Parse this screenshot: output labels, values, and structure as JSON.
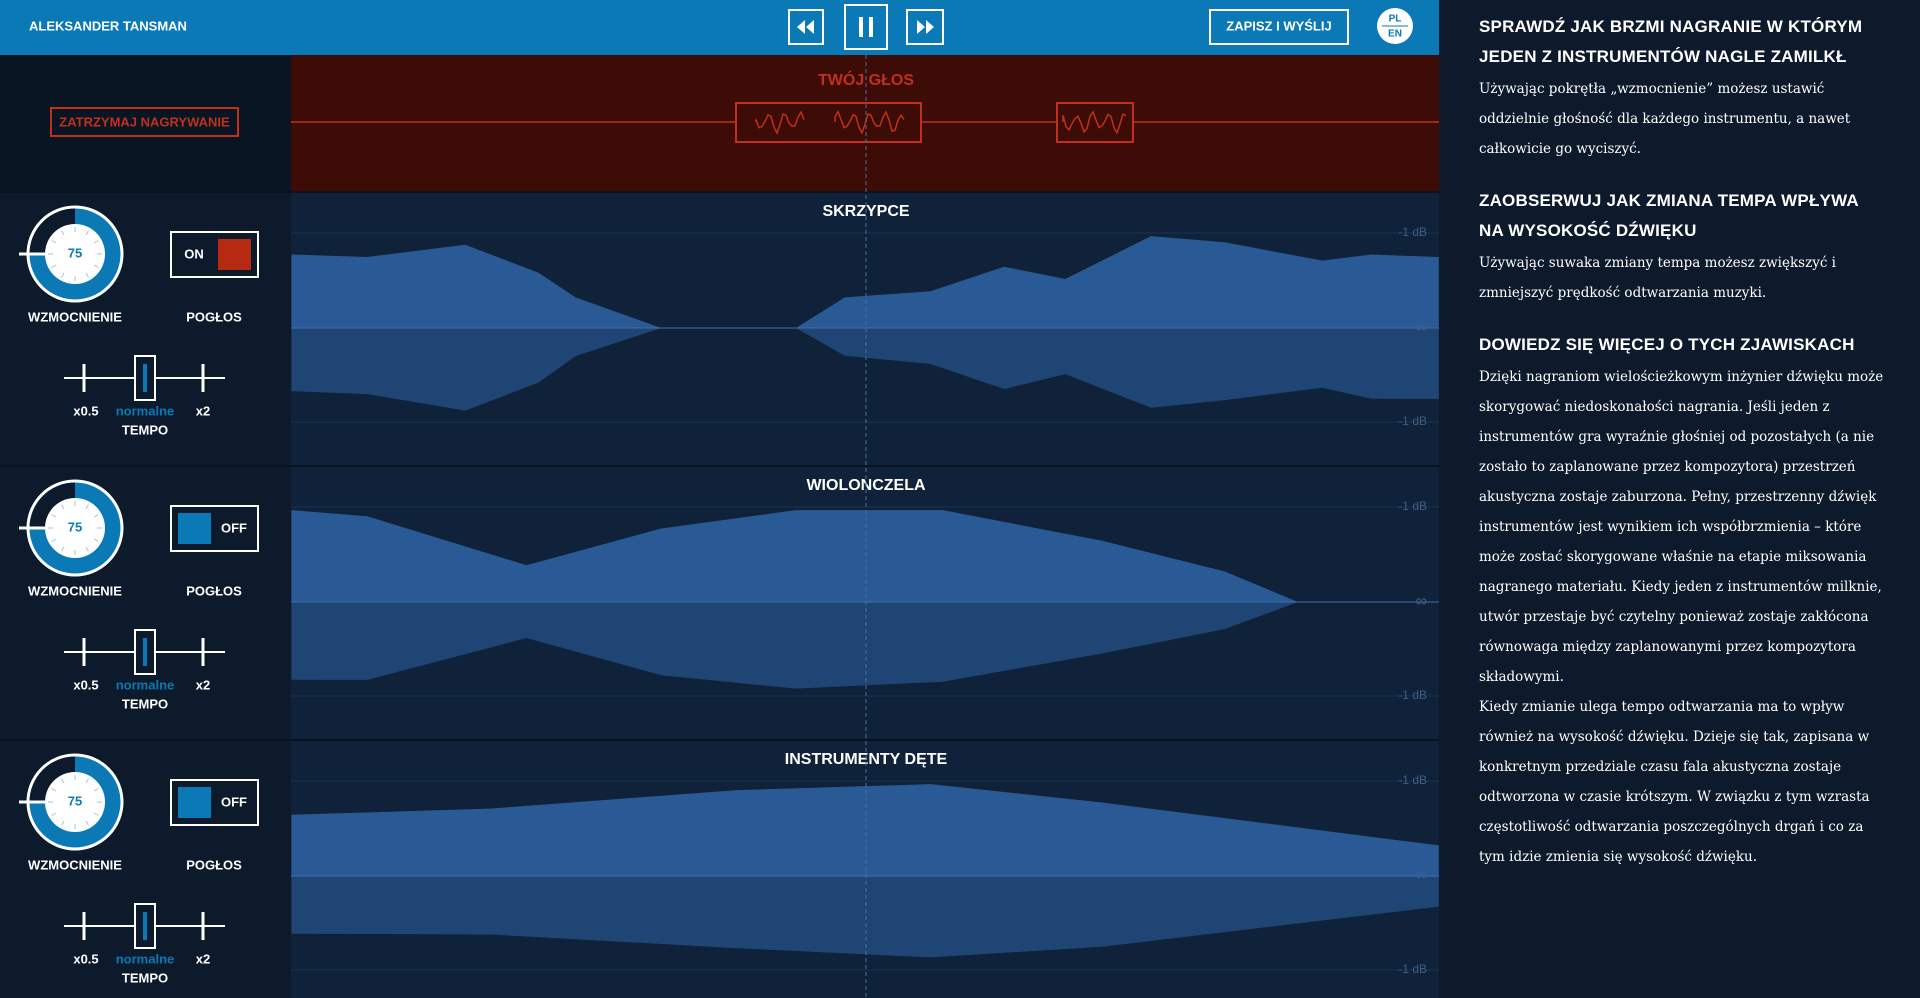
{
  "header": {
    "artist": "ALEKSANDER TANSMAN",
    "save_button": "ZAPISZ I WYŚLIJ",
    "lang": [
      "PL",
      "EN"
    ]
  },
  "recording": {
    "stop_button": "ZATRZYMAJ NAGRYWANIE",
    "title": "TWÓJ GŁOS"
  },
  "tracks": [
    {
      "name": "SKRZYPCE",
      "gain": 75,
      "gain_label": "WZMOCNIENIE",
      "reverb_label": "POGŁOS",
      "reverb_state": "ON",
      "tempo_min": "x0.5",
      "tempo_mid": "normalne",
      "tempo_max": "x2",
      "tempo_label": "TEMPO",
      "db_top": "-1 dB",
      "db_mid": "∞",
      "db_bottom": "-1 dB"
    },
    {
      "name": "WIOLONCZELA",
      "gain": 75,
      "gain_label": "WZMOCNIENIE",
      "reverb_label": "POGŁOS",
      "reverb_state": "OFF",
      "tempo_min": "x0.5",
      "tempo_mid": "normalne",
      "tempo_max": "x2",
      "tempo_label": "TEMPO",
      "db_top": "-1 dB",
      "db_mid": "∞",
      "db_bottom": "-1 dB"
    },
    {
      "name": "INSTRUMENTY DĘTE",
      "gain": 75,
      "gain_label": "WZMOCNIENIE",
      "reverb_label": "POGŁOS",
      "reverb_state": "OFF",
      "tempo_min": "x0.5",
      "tempo_mid": "normalne",
      "tempo_max": "x2",
      "tempo_label": "TEMPO",
      "db_top": "-1 dB",
      "db_mid": "∞",
      "db_bottom": "-1 dB"
    }
  ],
  "sidebar": {
    "sections": [
      {
        "heading": "SPRAWDŹ JAK BRZMI NAGRANIE W KTÓRYM JEDEN Z INSTRUMENTÓW NAGLE ZAMILKŁ",
        "paragraphs": [
          "Używając pokrętła „wzmocnienie” możesz ustawić oddzielnie głośność dla każdego instrumentu, a nawet całkowicie go wyciszyć."
        ]
      },
      {
        "heading": "ZAOBSERWUJ JAK ZMIANA TEMPA WPŁYWA NA WYSOKOŚĆ DŹWIĘKU",
        "paragraphs": [
          "Używając suwaka zmiany tempa możesz zwiększyć i zmniejszyć prędkość odtwarzania muzyki."
        ]
      },
      {
        "heading": "DOWIEDZ SIĘ WIĘCEJ O TYCH ZJAWISKACH",
        "paragraphs": [
          "Dzięki nagraniom wielościeżkowym inżynier dźwięku może skorygować niedoskonałości nagrania. Jeśli jeden z instrumentów gra wyraźnie głośniej od pozostałych (a nie zostało to zaplanowane przez kompozytora) przestrzeń akustyczna zostaje zaburzona. Pełny, przestrzenny dźwięk instrumentów jest wynikiem ich współbrzmienia – które może zostać skorygowane właśnie na etapie miksowania nagranego materiału. Kiedy jeden z instrumentów milknie, utwór przestaje być czytelny ponieważ zostaje zakłócona równowaga między zaplanowanymi przez kompozytora składowymi.",
          "Kiedy zmianie ulega tempo odtwarzania ma to wpływ również na wysokość dźwięku. Dzieje się tak, zapisana w konkretnym przedziale czasu fala akustyczna zostaje odtworzona w czasie krótszym. W związku z tym wzrasta częstotliwość odtwarzania poszczególnych drgań i co za tym idzie zmienia się wysokość dźwięku."
        ]
      }
    ]
  }
}
